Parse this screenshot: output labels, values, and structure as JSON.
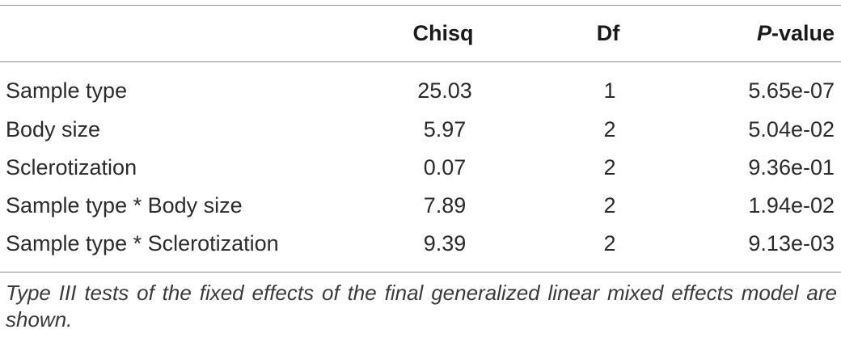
{
  "table": {
    "headers": {
      "effect": "",
      "chisq": "Chisq",
      "df": "Df",
      "pvalue_prefix": "P",
      "pvalue_suffix": "-value"
    },
    "rows": [
      {
        "effect": "Sample type",
        "chisq": "25.03",
        "df": "1",
        "pvalue": "5.65e-07"
      },
      {
        "effect": "Body size",
        "chisq": "5.97",
        "df": "2",
        "pvalue": "5.04e-02"
      },
      {
        "effect": "Sclerotization",
        "chisq": "0.07",
        "df": "2",
        "pvalue": "9.36e-01"
      },
      {
        "effect": "Sample type * Body size",
        "chisq": "7.89",
        "df": "2",
        "pvalue": "1.94e-02"
      },
      {
        "effect": "Sample type * Sclerotization",
        "chisq": "9.39",
        "df": "2",
        "pvalue": "9.13e-03"
      }
    ]
  },
  "footnote": "Type III tests of the fixed effects of the final generalized linear mixed effects model are shown."
}
